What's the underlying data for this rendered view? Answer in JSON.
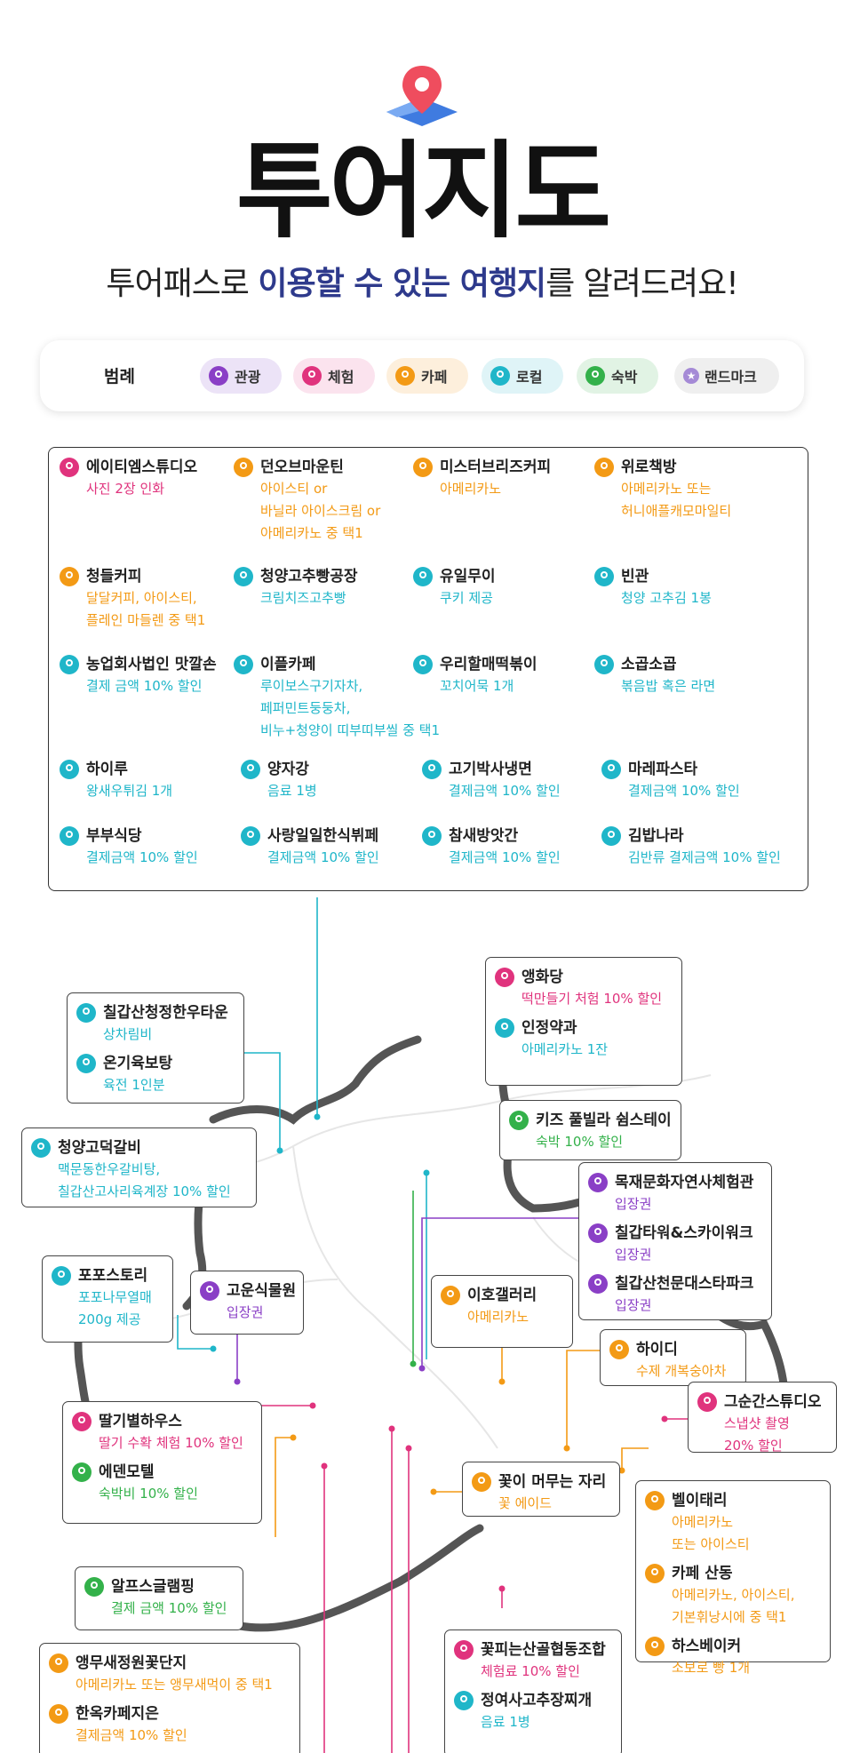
{
  "title": "투어지도",
  "subtitle": {
    "part1": "투어패스로 ",
    "hl1": "이용할 수 있는 여행지",
    "part2": "를 알려드려요!"
  },
  "colors": {
    "tour": "#8a3fc6",
    "exp": "#e0337d",
    "cafe": "#f39a15",
    "local": "#1fb6c9",
    "stay": "#33b14a",
    "landmark": "#a58ad6"
  },
  "legend": {
    "label": "범례",
    "items": [
      {
        "label": "관광",
        "type": "tour"
      },
      {
        "label": "체험",
        "type": "exp"
      },
      {
        "label": "카페",
        "type": "cafe"
      },
      {
        "label": "로컬",
        "type": "local"
      },
      {
        "label": "숙박",
        "type": "stay"
      },
      {
        "label": "랜드마크",
        "type": "landmark",
        "icon": "star-icon"
      }
    ]
  },
  "panel": [
    {
      "name": "에이티엠스튜디오",
      "desc": [
        "사진 2장 인화"
      ],
      "type": "exp"
    },
    {
      "name": "던오브마운틴",
      "desc": [
        "아이스티 or",
        "바닐라 아이스크림 or",
        "아메리카노 중 택1"
      ],
      "type": "cafe"
    },
    {
      "name": "미스터브리즈커피",
      "desc": [
        "아메리카노"
      ],
      "type": "cafe"
    },
    {
      "name": "위로책방",
      "desc": [
        "아메리카노 또는",
        "허니애플캐모마일티"
      ],
      "type": "cafe"
    },
    {
      "name": "청들커피",
      "desc": [
        "달달커피, 아이스티,",
        "플레인 마들렌 중 택1"
      ],
      "type": "cafe"
    },
    {
      "name": "청양고추빵공장",
      "desc": [
        "크림치즈고추빵"
      ],
      "type": "local"
    },
    {
      "name": "유일무이",
      "desc": [
        "쿠키 제공"
      ],
      "type": "local"
    },
    {
      "name": "빈관",
      "desc": [
        "청양 고추김 1봉"
      ],
      "type": "local"
    },
    {
      "name": "농업회사법인 맛깔손",
      "desc": [
        "결제 금액 10% 할인"
      ],
      "type": "local"
    },
    {
      "name": "이플카페",
      "desc": [
        "루이보스구기자차,",
        "페퍼민트둥둥차,",
        "비누+청양이 띠부띠부씰 중 택1"
      ],
      "type": "local"
    },
    {
      "name": "우리할매떡볶이",
      "desc": [
        "꼬치어묵 1개"
      ],
      "type": "local"
    },
    {
      "name": "소곱소곱",
      "desc": [
        "볶음밥 혹은 라면"
      ],
      "type": "local"
    },
    {
      "name": "하이루",
      "desc": [
        "왕새우튀김 1개"
      ],
      "type": "local"
    },
    {
      "name": "양자강",
      "desc": [
        "음료 1병"
      ],
      "type": "local"
    },
    {
      "name": "고기박사냉면",
      "desc": [
        "결제금액 10% 할인"
      ],
      "type": "local"
    },
    {
      "name": "마레파스타",
      "desc": [
        "결제금액 10% 할인"
      ],
      "type": "local"
    },
    {
      "name": "부부식당",
      "desc": [
        "결제금액 10% 할인"
      ],
      "type": "local"
    },
    {
      "name": "사랑일일한식뷔페",
      "desc": [
        "결제금액 10% 할인"
      ],
      "type": "local"
    },
    {
      "name": "참새방앗간",
      "desc": [
        "결제금액 10% 할인"
      ],
      "type": "local"
    },
    {
      "name": "김밥나라",
      "desc": [
        "김반류 결제금액 10% 할인"
      ],
      "type": "local"
    }
  ],
  "boxes": [
    {
      "entries": [
        {
          "name": "앵화당",
          "desc": [
            "떡만들기 처험 10% 할인"
          ],
          "type": "exp"
        },
        {
          "name": "인정약과",
          "desc": [
            "아메리카노 1잔"
          ],
          "type": "local"
        }
      ]
    },
    {
      "entries": [
        {
          "name": "칠갑산청정한우타운",
          "desc": [
            "상차림비"
          ],
          "type": "local"
        },
        {
          "name": "온기육보탕",
          "desc": [
            "육전 1인분"
          ],
          "type": "local"
        }
      ]
    },
    {
      "entries": [
        {
          "name": "키즈 풀빌라 쉼스테이",
          "desc": [
            "숙박 10% 할인"
          ],
          "type": "stay"
        }
      ]
    },
    {
      "entries": [
        {
          "name": "청양고덕갈비",
          "desc": [
            "맥문동한우갈비탕,",
            "칠갑산고사리육계장 10% 할인"
          ],
          "type": "local"
        }
      ]
    },
    {
      "entries": [
        {
          "name": "목재문화자연사체험관",
          "desc": [
            "입장권"
          ],
          "type": "tour"
        },
        {
          "name": "칠갑타워&스카이워크",
          "desc": [
            "입장권"
          ],
          "type": "tour"
        },
        {
          "name": "칠갑산천문대스타파크",
          "desc": [
            "입장권"
          ],
          "type": "tour"
        }
      ]
    },
    {
      "entries": [
        {
          "name": "포포스토리",
          "desc": [
            "포포나무열매",
            "200g 제공"
          ],
          "type": "local"
        }
      ]
    },
    {
      "entries": [
        {
          "name": "고운식물원",
          "desc": [
            "입장권"
          ],
          "type": "tour"
        }
      ]
    },
    {
      "entries": [
        {
          "name": "이호갤러리",
          "desc": [
            "아메리카노"
          ],
          "type": "cafe"
        }
      ]
    },
    {
      "entries": [
        {
          "name": "하이디",
          "desc": [
            "수제 개복숭아차"
          ],
          "type": "cafe"
        }
      ]
    },
    {
      "entries": [
        {
          "name": "그순간스튜디오",
          "desc": [
            "스냅샷 촬영",
            "20% 할인"
          ],
          "type": "exp"
        }
      ]
    },
    {
      "entries": [
        {
          "name": "딸기별하우스",
          "desc": [
            "딸기 수확 체험 10% 할인"
          ],
          "type": "exp"
        },
        {
          "name": "에덴모텔",
          "desc": [
            "숙박비 10% 할인"
          ],
          "type": "stay"
        }
      ]
    },
    {
      "entries": [
        {
          "name": "꽃이 머무는 자리",
          "desc": [
            "꽃 에이드"
          ],
          "type": "cafe"
        }
      ]
    },
    {
      "entries": [
        {
          "name": "벨이태리",
          "desc": [
            "아메리카노",
            "또는 아이스티"
          ],
          "type": "cafe"
        },
        {
          "name": "카페 산동",
          "desc": [
            "아메리카노, 아이스티,",
            "기본휘낭시에 중 택1"
          ],
          "type": "cafe"
        },
        {
          "name": "하스베이커",
          "desc": [
            "소보로 빵 1개"
          ],
          "type": "cafe"
        }
      ]
    },
    {
      "entries": [
        {
          "name": "알프스글램핑",
          "desc": [
            "결제 금액 10% 할인"
          ],
          "type": "stay"
        }
      ]
    },
    {
      "entries": [
        {
          "name": "꽃피는산골협동조합",
          "desc": [
            "체험료 10% 할인"
          ],
          "type": "exp"
        },
        {
          "name": "정여사고추장찌개",
          "desc": [
            "음료 1병"
          ],
          "type": "local"
        }
      ]
    },
    {
      "entries": [
        {
          "name": "앵무새정원꽃단지",
          "desc": [
            "아메리카노 또는 앵무새먹이 중 택1"
          ],
          "type": "cafe"
        },
        {
          "name": "한옥카페지은",
          "desc": [
            "결제금액 10% 할인"
          ],
          "type": "cafe"
        }
      ]
    }
  ]
}
